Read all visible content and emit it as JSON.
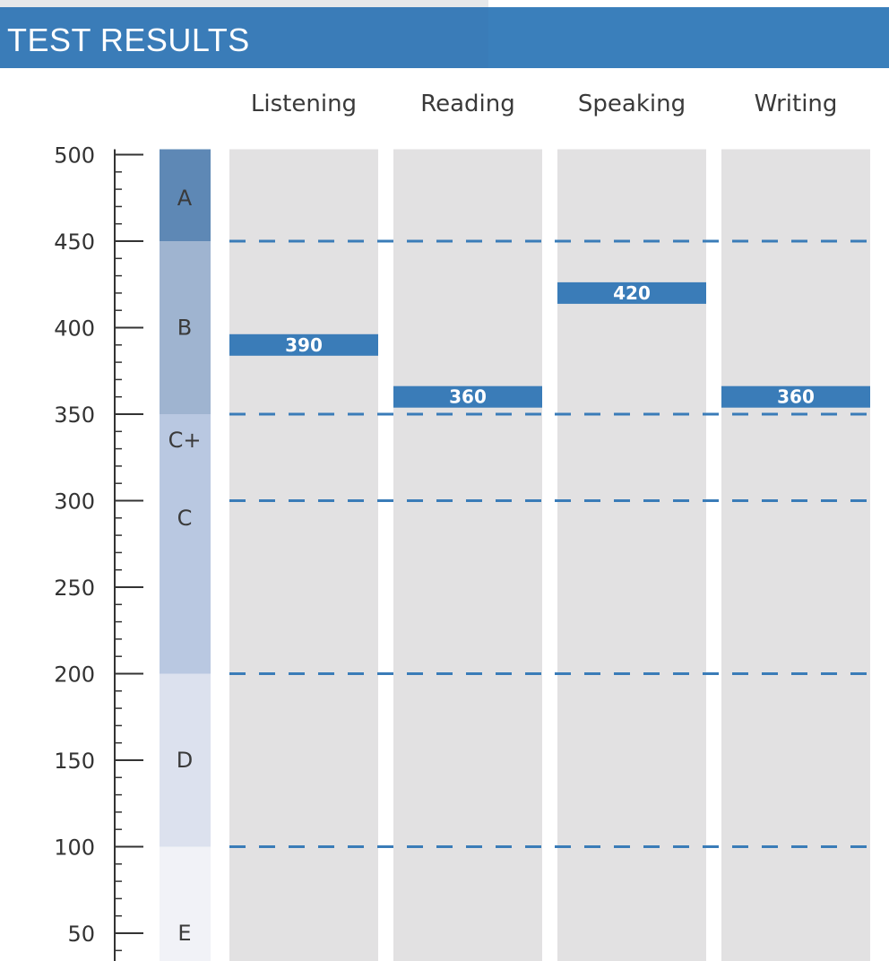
{
  "header": {
    "title": "TEST RESULTS"
  },
  "chart_data": {
    "type": "bar",
    "categories": [
      "Listening",
      "Reading",
      "Speaking",
      "Writing"
    ],
    "values": [
      390,
      360,
      420,
      360
    ],
    "value_labels": [
      "390",
      "360",
      "420",
      "360"
    ],
    "y_ticks": [
      {
        "value": 500,
        "label": "500"
      },
      {
        "value": 450,
        "label": "450"
      },
      {
        "value": 400,
        "label": "400"
      },
      {
        "value": 350,
        "label": "350"
      },
      {
        "value": 300,
        "label": "300"
      },
      {
        "value": 250,
        "label": "250"
      },
      {
        "value": 200,
        "label": "200"
      },
      {
        "value": 150,
        "label": "150"
      },
      {
        "value": 100,
        "label": "100"
      },
      {
        "value": 50,
        "label": "50"
      }
    ],
    "ylim": [
      0,
      500
    ],
    "minor_tick_step": 10,
    "bands": [
      {
        "label": "A",
        "from": 450,
        "to": 500,
        "label_at": 475,
        "color": "#5e88b5"
      },
      {
        "label": "B",
        "from": 350,
        "to": 450,
        "label_at": 400,
        "color": "#9fb4d0"
      },
      {
        "label": "C+",
        "from": 300,
        "to": 350,
        "label_at": 335,
        "color": "#b9c8e1"
      },
      {
        "label": "C",
        "from": 200,
        "to": 300,
        "label_at": 290,
        "color": "#b9c8e1"
      },
      {
        "label": "D",
        "from": 100,
        "to": 200,
        "label_at": 150,
        "color": "#dce1ee"
      },
      {
        "label": "E",
        "from": 0,
        "to": 100,
        "label_at": 50,
        "color": "#f1f2f7"
      }
    ],
    "threshold_lines": [
      450,
      350,
      300,
      200,
      100
    ],
    "colors": {
      "header": "#3a7cb8",
      "bar": "#3a7cb8",
      "column_background": "#e2e1e2",
      "dashed_line": "#3a7cb8"
    }
  }
}
